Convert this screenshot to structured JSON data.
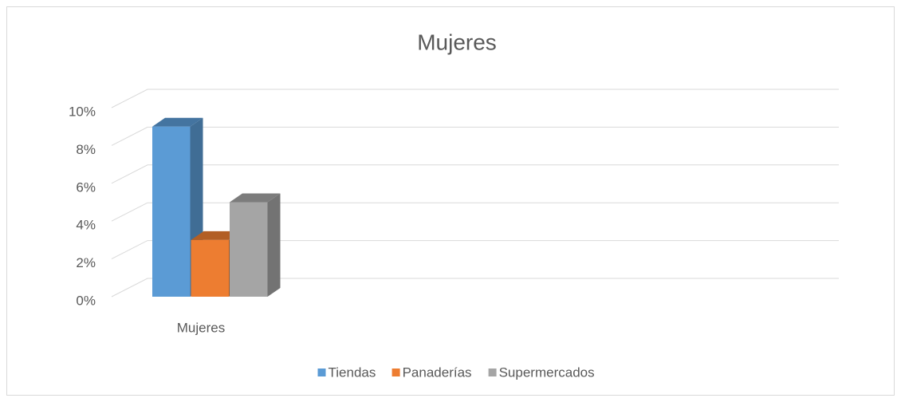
{
  "chart_data": {
    "type": "bar3d",
    "title": "Mujeres",
    "categories": [
      "Mujeres"
    ],
    "series": [
      {
        "name": "Tiendas",
        "color": "#5b9bd5",
        "values": [
          9
        ]
      },
      {
        "name": "Panaderías",
        "color": "#ed7d31",
        "values": [
          3
        ]
      },
      {
        "name": "Supermercados",
        "color": "#a5a5a5",
        "values": [
          5
        ]
      }
    ],
    "ylim": [
      0,
      10
    ],
    "yticks": [
      {
        "value": 0,
        "label": "0%"
      },
      {
        "value": 2,
        "label": "2%"
      },
      {
        "value": 4,
        "label": "4%"
      },
      {
        "value": 6,
        "label": "6%"
      },
      {
        "value": 8,
        "label": "8%"
      },
      {
        "value": 10,
        "label": "10%"
      }
    ],
    "grid": true,
    "legend": "bottom"
  }
}
